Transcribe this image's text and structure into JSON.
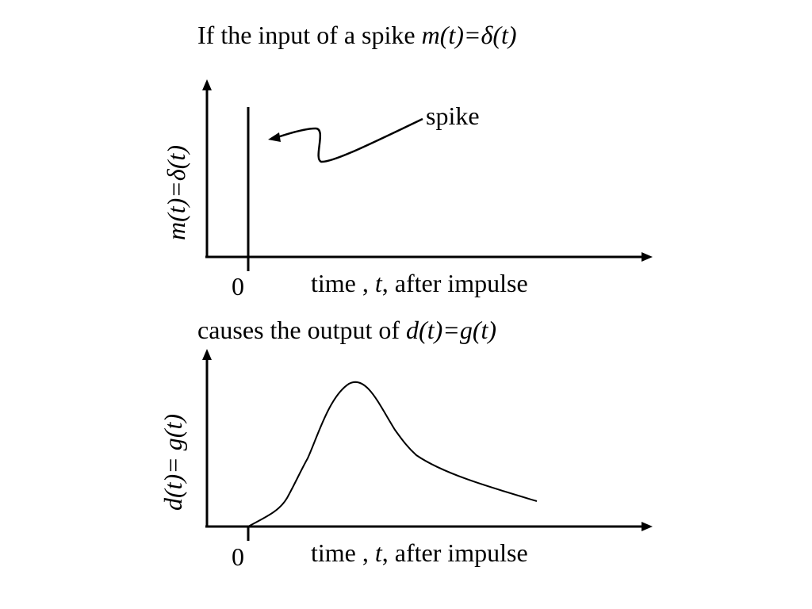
{
  "top_title": {
    "prefix": "If the input of a spike ",
    "formula": "m(t)=δ(t)"
  },
  "top_chart": {
    "y_label": "m(t)=δ(t)",
    "x_label_prefix": "time , ",
    "x_label_var": "t",
    "x_label_suffix": ", after impulse",
    "origin_label": "0",
    "annotation": "spike"
  },
  "mid_title": {
    "prefix": "causes the output of ",
    "formula": "d(t)=g(t)"
  },
  "bottom_chart": {
    "y_label": "d(t)= g(t)",
    "x_label_prefix": "time , ",
    "x_label_var": "t",
    "x_label_suffix": ", after impulse",
    "origin_label": "0"
  }
}
